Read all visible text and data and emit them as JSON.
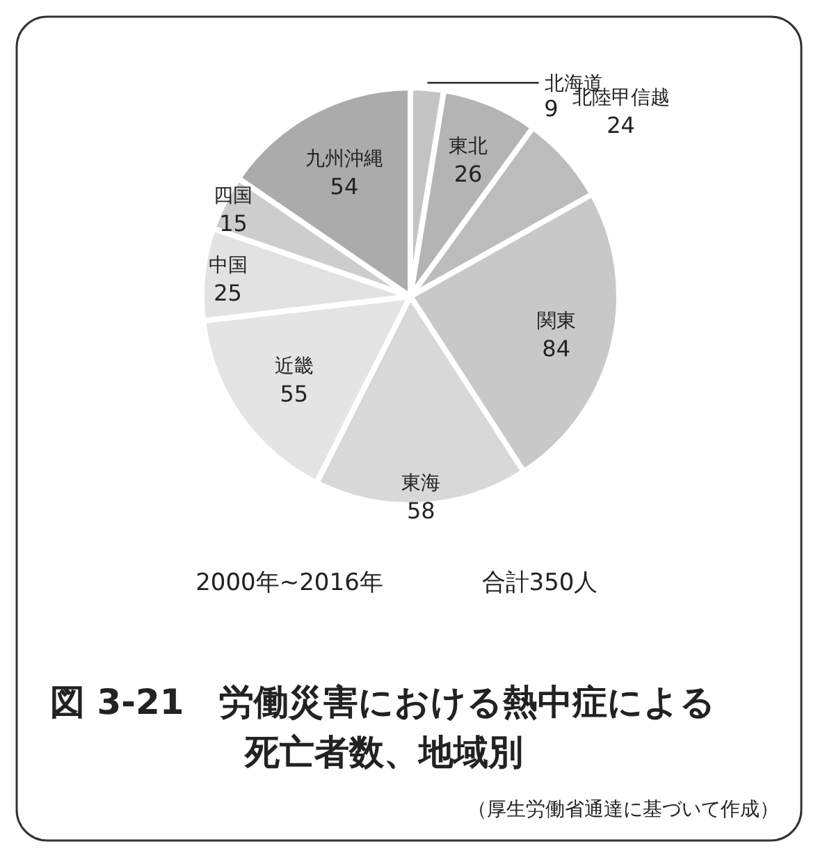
{
  "chart_data": {
    "type": "pie",
    "title": "図 3-21　労働災害における熱中症による死亡者数、地域別",
    "categories": [
      "北海道",
      "東北",
      "北陸甲信越",
      "関東",
      "東海",
      "近畿",
      "中国",
      "四国",
      "九州沖縄"
    ],
    "values": [
      9,
      26,
      24,
      84,
      58,
      55,
      25,
      15,
      54
    ],
    "colors": [
      "#c4c4c4",
      "#b4b4b4",
      "#bcbcbc",
      "#c8c8c8",
      "#d8d8d8",
      "#e4e4e4",
      "#e2e2e2",
      "#cdcdcd",
      "#ababab"
    ],
    "data_labels": true,
    "annotations": [
      "2000年~2016年",
      "合計350人",
      "（厚生労働省通達に基づいて作成）"
    ]
  }
}
